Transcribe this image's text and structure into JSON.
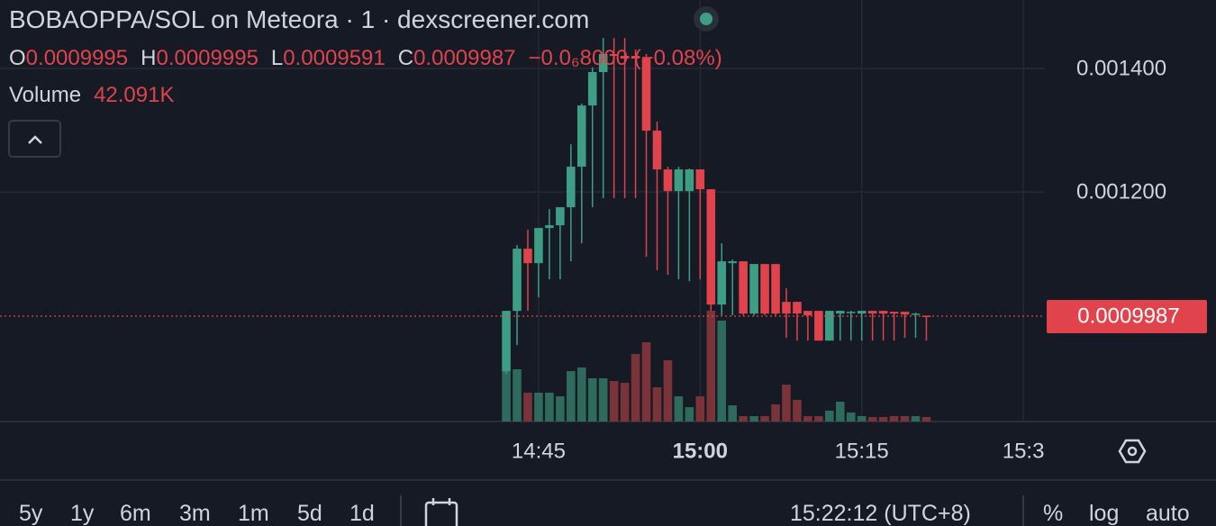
{
  "chart_data": {
    "type": "candlestick",
    "header": {
      "title": "BOBAOPPA/SOL on Meteora · 1 · dexscreener.com",
      "ohlc_names": [
        "O",
        "H",
        "L",
        "C"
      ],
      "change": "−0.0₆8000 (−0.08%)",
      "volume_name": "Volume",
      "volume_display": "42.091K"
    },
    "x": [
      882,
      883,
      884,
      885,
      886,
      887,
      888,
      889,
      890,
      891,
      892,
      893,
      894,
      895,
      896,
      897,
      898,
      899,
      900,
      901,
      902,
      903,
      904,
      905,
      906,
      907,
      908,
      909,
      910,
      911,
      912,
      913,
      914,
      915,
      916,
      917,
      918,
      919,
      920,
      921
    ],
    "open": [
      0.0009094,
      0.0010073,
      0.001108,
      0.0010846,
      0.0011416,
      0.001146,
      0.0011752,
      0.0012409,
      0.0013401,
      0.0013942,
      0.0014234,
      0.0014204,
      0.0014204,
      0.0014161,
      0.0012993,
      0.0012365,
      0.0012014,
      0.0012014,
      0.0012365,
      0.0012044,
      0.0010175,
      0.0010846,
      0.0010876,
      0.0010029,
      0.0010832,
      0.0010832,
      0.0010219,
      0.0010219,
      0.0010073,
      0.0010073,
      0.0009591,
      0.0010029,
      0.0010043,
      0.0010029,
      0.0010073,
      0.0010073,
      0.0010058,
      0.0010058,
      0.0010014,
      0.0009995
    ],
    "high": [
      0.0010073,
      0.0011138,
      0.0011387,
      0.0011416,
      0.0011722,
      0.0011752,
      0.0012774,
      0.0013431,
      0.0014015,
      0.0014496,
      0.0014496,
      0.0014496,
      0.0014307,
      0.0014234,
      0.0013139,
      0.0012409,
      0.0012409,
      0.0012379,
      0.0012365,
      0.0012044,
      0.0011168,
      0.0010905,
      0.0010876,
      0.0010832,
      0.0010832,
      0.0010832,
      0.0010438,
      0.0010219,
      0.0010073,
      0.0010073,
      0.0010073,
      0.0010073,
      0.0010073,
      0.0010073,
      0.0010073,
      0.0010073,
      0.0010058,
      0.0010058,
      0.0010043,
      0.0009995
    ],
    "low": [
      0.0009051,
      0.0009518,
      0.0010073,
      0.0010292,
      0.0010584,
      0.0010584,
      0.0010876,
      0.0011168,
      0.0011752,
      0.0011898,
      0.0011898,
      0.0011898,
      0.0011898,
      0.0010949,
      0.001073,
      0.0010657,
      0.0010584,
      0.0010554,
      0.0010584,
      0.0010073,
      0.001,
      0.001,
      0.001,
      0.001,
      0.001,
      0.001,
      0.0009635,
      0.0009591,
      0.0009591,
      0.0009591,
      0.0009591,
      0.0009591,
      0.0009591,
      0.0009591,
      0.0009591,
      0.0009591,
      0.0009591,
      0.0009635,
      0.0009635,
      0.0009591
    ],
    "close": [
      0.0010073,
      0.001108,
      0.0010846,
      0.0011416,
      0.001146,
      0.0011752,
      0.0012409,
      0.0013401,
      0.0013942,
      0.0014234,
      0.0014204,
      0.0014161,
      0.0014161,
      0.0012993,
      0.0012365,
      0.0012014,
      0.0012365,
      0.0012365,
      0.0012044,
      0.0010175,
      0.0010876,
      0.0010876,
      0.0010029,
      0.0010832,
      0.0010029,
      0.0010029,
      0.0010029,
      0.0010029,
      0.001,
      0.0009591,
      0.0010073,
      0.0010073,
      0.0010058,
      0.0010073,
      0.0010029,
      0.0010029,
      0.0010029,
      0.0010014,
      0.0010029,
      0.0009987
    ],
    "volume": [
      470000,
      487000,
      269000,
      269000,
      269000,
      235000,
      470000,
      504000,
      403000,
      403000,
      378000,
      361000,
      630000,
      739000,
      319000,
      571000,
      235000,
      134000,
      235000,
      1033000,
      941000,
      151000,
      50000,
      50000,
      50000,
      160000,
      344000,
      202000,
      50000,
      50000,
      101000,
      185000,
      84000,
      50000,
      42000,
      42000,
      50000,
      50000,
      50000,
      42091
    ],
    "up_color": "#3d9e85",
    "down_color": "#e0434c",
    "up_volume_color": "#2f6b5c",
    "down_volume_color": "#7a3338",
    "last_price": 0.0009987,
    "xlim": [
      835,
      932
    ],
    "xticks": [
      {
        "value": 885,
        "label": "14:45"
      },
      {
        "value": 900,
        "label": "15:00"
      },
      {
        "value": 915,
        "label": "15:15"
      },
      {
        "value": 930,
        "label": "15:3"
      }
    ],
    "ylim": [
      0.000828,
      0.001511
    ],
    "yticks": [
      {
        "value": 0.0012,
        "label": "0.001200"
      },
      {
        "value": 0.0014,
        "label": "0.001400"
      }
    ],
    "grid": true
  },
  "toolbar": {
    "ranges": [
      "5y",
      "1y",
      "6m",
      "3m",
      "1m",
      "5d",
      "1d"
    ],
    "clock": "15:22:12 (UTC+8)",
    "options": [
      "%",
      "log",
      "auto"
    ]
  }
}
